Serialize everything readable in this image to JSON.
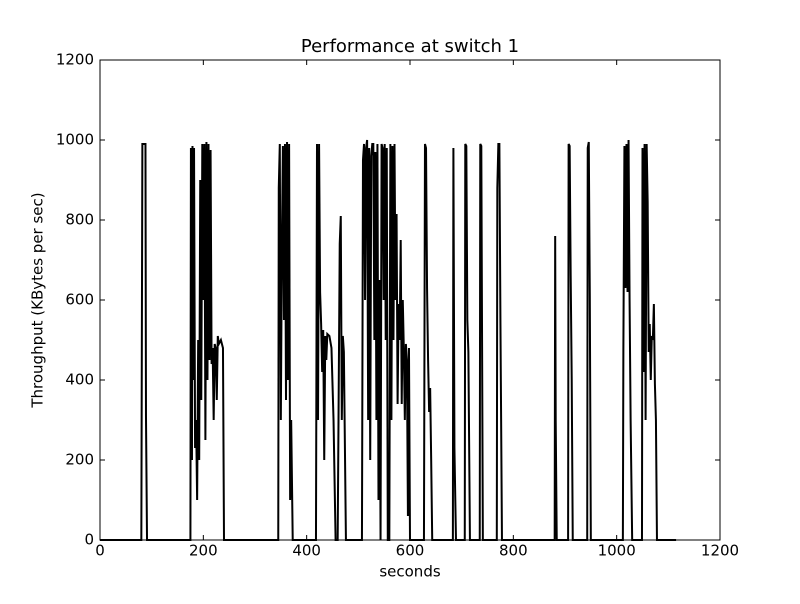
{
  "chart_data": {
    "type": "line",
    "title": "Performance at switch 1",
    "xlabel": "seconds",
    "ylabel": "Throughput (KBytes per sec)",
    "xlim": [
      0,
      1200
    ],
    "ylim": [
      0,
      1200
    ],
    "xticks": [
      0,
      200,
      400,
      600,
      800,
      1000,
      1200
    ],
    "yticks": [
      0,
      200,
      400,
      600,
      800,
      1000,
      1200
    ],
    "grid": false,
    "series": [
      {
        "color": "#000000",
        "x": [
          0,
          80,
          82,
          88,
          89,
          91,
          175,
          176,
          178,
          179,
          181,
          182,
          184,
          186,
          188,
          190,
          192,
          194,
          196,
          198,
          200,
          202,
          204,
          206,
          208,
          210,
          212,
          214,
          216,
          218,
          220,
          222,
          224,
          226,
          228,
          230,
          234,
          238,
          240,
          345,
          346,
          348,
          350,
          352,
          354,
          356,
          358,
          360,
          362,
          364,
          366,
          368,
          370,
          373,
          418,
          420,
          422,
          424,
          426,
          428,
          430,
          432,
          434,
          436,
          438,
          440,
          444,
          448,
          452,
          456,
          460,
          464,
          466,
          468,
          470,
          472,
          476,
          507,
          509,
          511,
          513,
          515,
          517,
          519,
          521,
          523,
          525,
          527,
          529,
          531,
          533,
          535,
          537,
          539,
          541,
          543,
          545,
          547,
          549,
          551,
          553,
          555,
          557,
          560,
          562,
          564,
          566,
          568,
          570,
          572,
          574,
          576,
          578,
          580,
          582,
          584,
          586,
          588,
          590,
          592,
          594,
          596,
          598,
          600,
          602,
          604,
          606,
          608,
          610,
          612,
          614,
          616,
          618,
          620,
          627,
          629,
          631,
          633,
          635,
          637,
          639,
          641,
          643,
          683,
          684,
          686,
          689,
          706,
          707,
          709,
          711,
          713,
          716,
          735,
          736,
          738,
          741,
          768,
          769,
          771,
          773,
          775,
          778,
          880,
          881,
          882,
          884,
          906,
          907,
          909,
          911,
          913,
          915,
          943,
          944,
          946,
          948,
          950,
          1012,
          1013,
          1015,
          1017,
          1019,
          1021,
          1023,
          1025,
          1027,
          1030,
          1049,
          1050,
          1052,
          1054,
          1056,
          1058,
          1060,
          1062,
          1064,
          1066,
          1068,
          1070,
          1072,
          1074,
          1076,
          1078,
          1080,
          1082,
          1084,
          1115
        ],
        "values": [
          0,
          0,
          990,
          990,
          310,
          0,
          0,
          980,
          200,
          985,
          400,
          980,
          230,
          300,
          100,
          500,
          200,
          900,
          350,
          990,
          600,
          990,
          250,
          995,
          400,
          990,
          450,
          975,
          440,
          480,
          300,
          490,
          480,
          350,
          510,
          490,
          500,
          480,
          0,
          0,
          880,
          990,
          300,
          730,
          985,
          550,
          990,
          350,
          995,
          400,
          990,
          100,
          300,
          0,
          0,
          990,
          300,
          990,
          620,
          540,
          420,
          525,
          200,
          510,
          450,
          515,
          510,
          480,
          300,
          0,
          0,
          740,
          810,
          300,
          510,
          470,
          0,
          0,
          950,
          990,
          600,
          980,
          1000,
          300,
          980,
          200,
          960,
          990,
          990,
          500,
          970,
          300,
          990,
          100,
          650,
          0,
          990,
          980,
          600,
          990,
          500,
          980,
          0,
          0,
          990,
          300,
          985,
          500,
          990,
          600,
          815,
          340,
          590,
          500,
          750,
          340,
          600,
          480,
          300,
          490,
          450,
          60,
          480,
          0,
          0,
          0,
          0,
          0,
          0,
          0,
          0,
          0,
          0,
          0,
          0,
          990,
          980,
          630,
          450,
          320,
          380,
          200,
          0,
          0,
          980,
          230,
          0,
          0,
          990,
          985,
          550,
          470,
          0,
          0,
          990,
          985,
          0,
          0,
          880,
          990,
          990,
          550,
          0,
          0,
          760,
          300,
          0,
          0,
          990,
          985,
          660,
          400,
          0,
          0,
          980,
          995,
          610,
          0,
          0,
          480,
          985,
          630,
          990,
          620,
          1000,
          600,
          300,
          0,
          0,
          980,
          420,
          990,
          300,
          990,
          845,
          470,
          540,
          400,
          510,
          500,
          590,
          390,
          300,
          0,
          0,
          0,
          0,
          0
        ]
      }
    ]
  }
}
